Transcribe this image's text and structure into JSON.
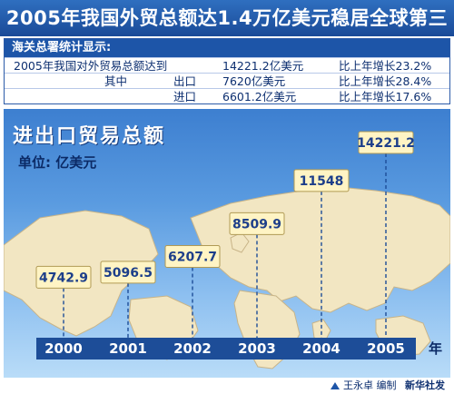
{
  "header": {
    "title": "2005年我国外贸总额达1.4万亿美元稳居全球第三"
  },
  "stats": {
    "heading": "海关总署统计显示:",
    "rows": [
      {
        "label": "2005年我国对外贸易总额达到",
        "value": "14221.2亿美元",
        "growth": "比上年增长23.2%"
      },
      {
        "label": "其中",
        "sub": "出口",
        "value": "7620亿美元",
        "growth": "比上年增长28.4%"
      },
      {
        "sub": "进口",
        "value": "6601.2亿美元",
        "growth": "比上年增长17.6%"
      }
    ]
  },
  "chart_data": {
    "type": "bar",
    "title": "进出口贸易总额",
    "ylabel": "单位: 亿美元",
    "xlabel": "年",
    "categories": [
      "2000",
      "2001",
      "2002",
      "2003",
      "2004",
      "2005"
    ],
    "values": [
      4742.9,
      5096.5,
      6207.7,
      8509.9,
      11548,
      14221.2
    ],
    "value_labels": [
      "4742.9",
      "5096.5",
      "6207.7",
      "8509.9",
      "11548",
      "14221.2"
    ],
    "colors": {
      "label_box": "#fff4c4",
      "label_border": "#b09a55",
      "label_text": "#1d3f8a",
      "axis_band": "#1d4d98",
      "axis_text": "#ffffff",
      "leader": "#1d4d98"
    }
  },
  "footer": {
    "author": "王永卓 编制",
    "org": "新华社发"
  }
}
